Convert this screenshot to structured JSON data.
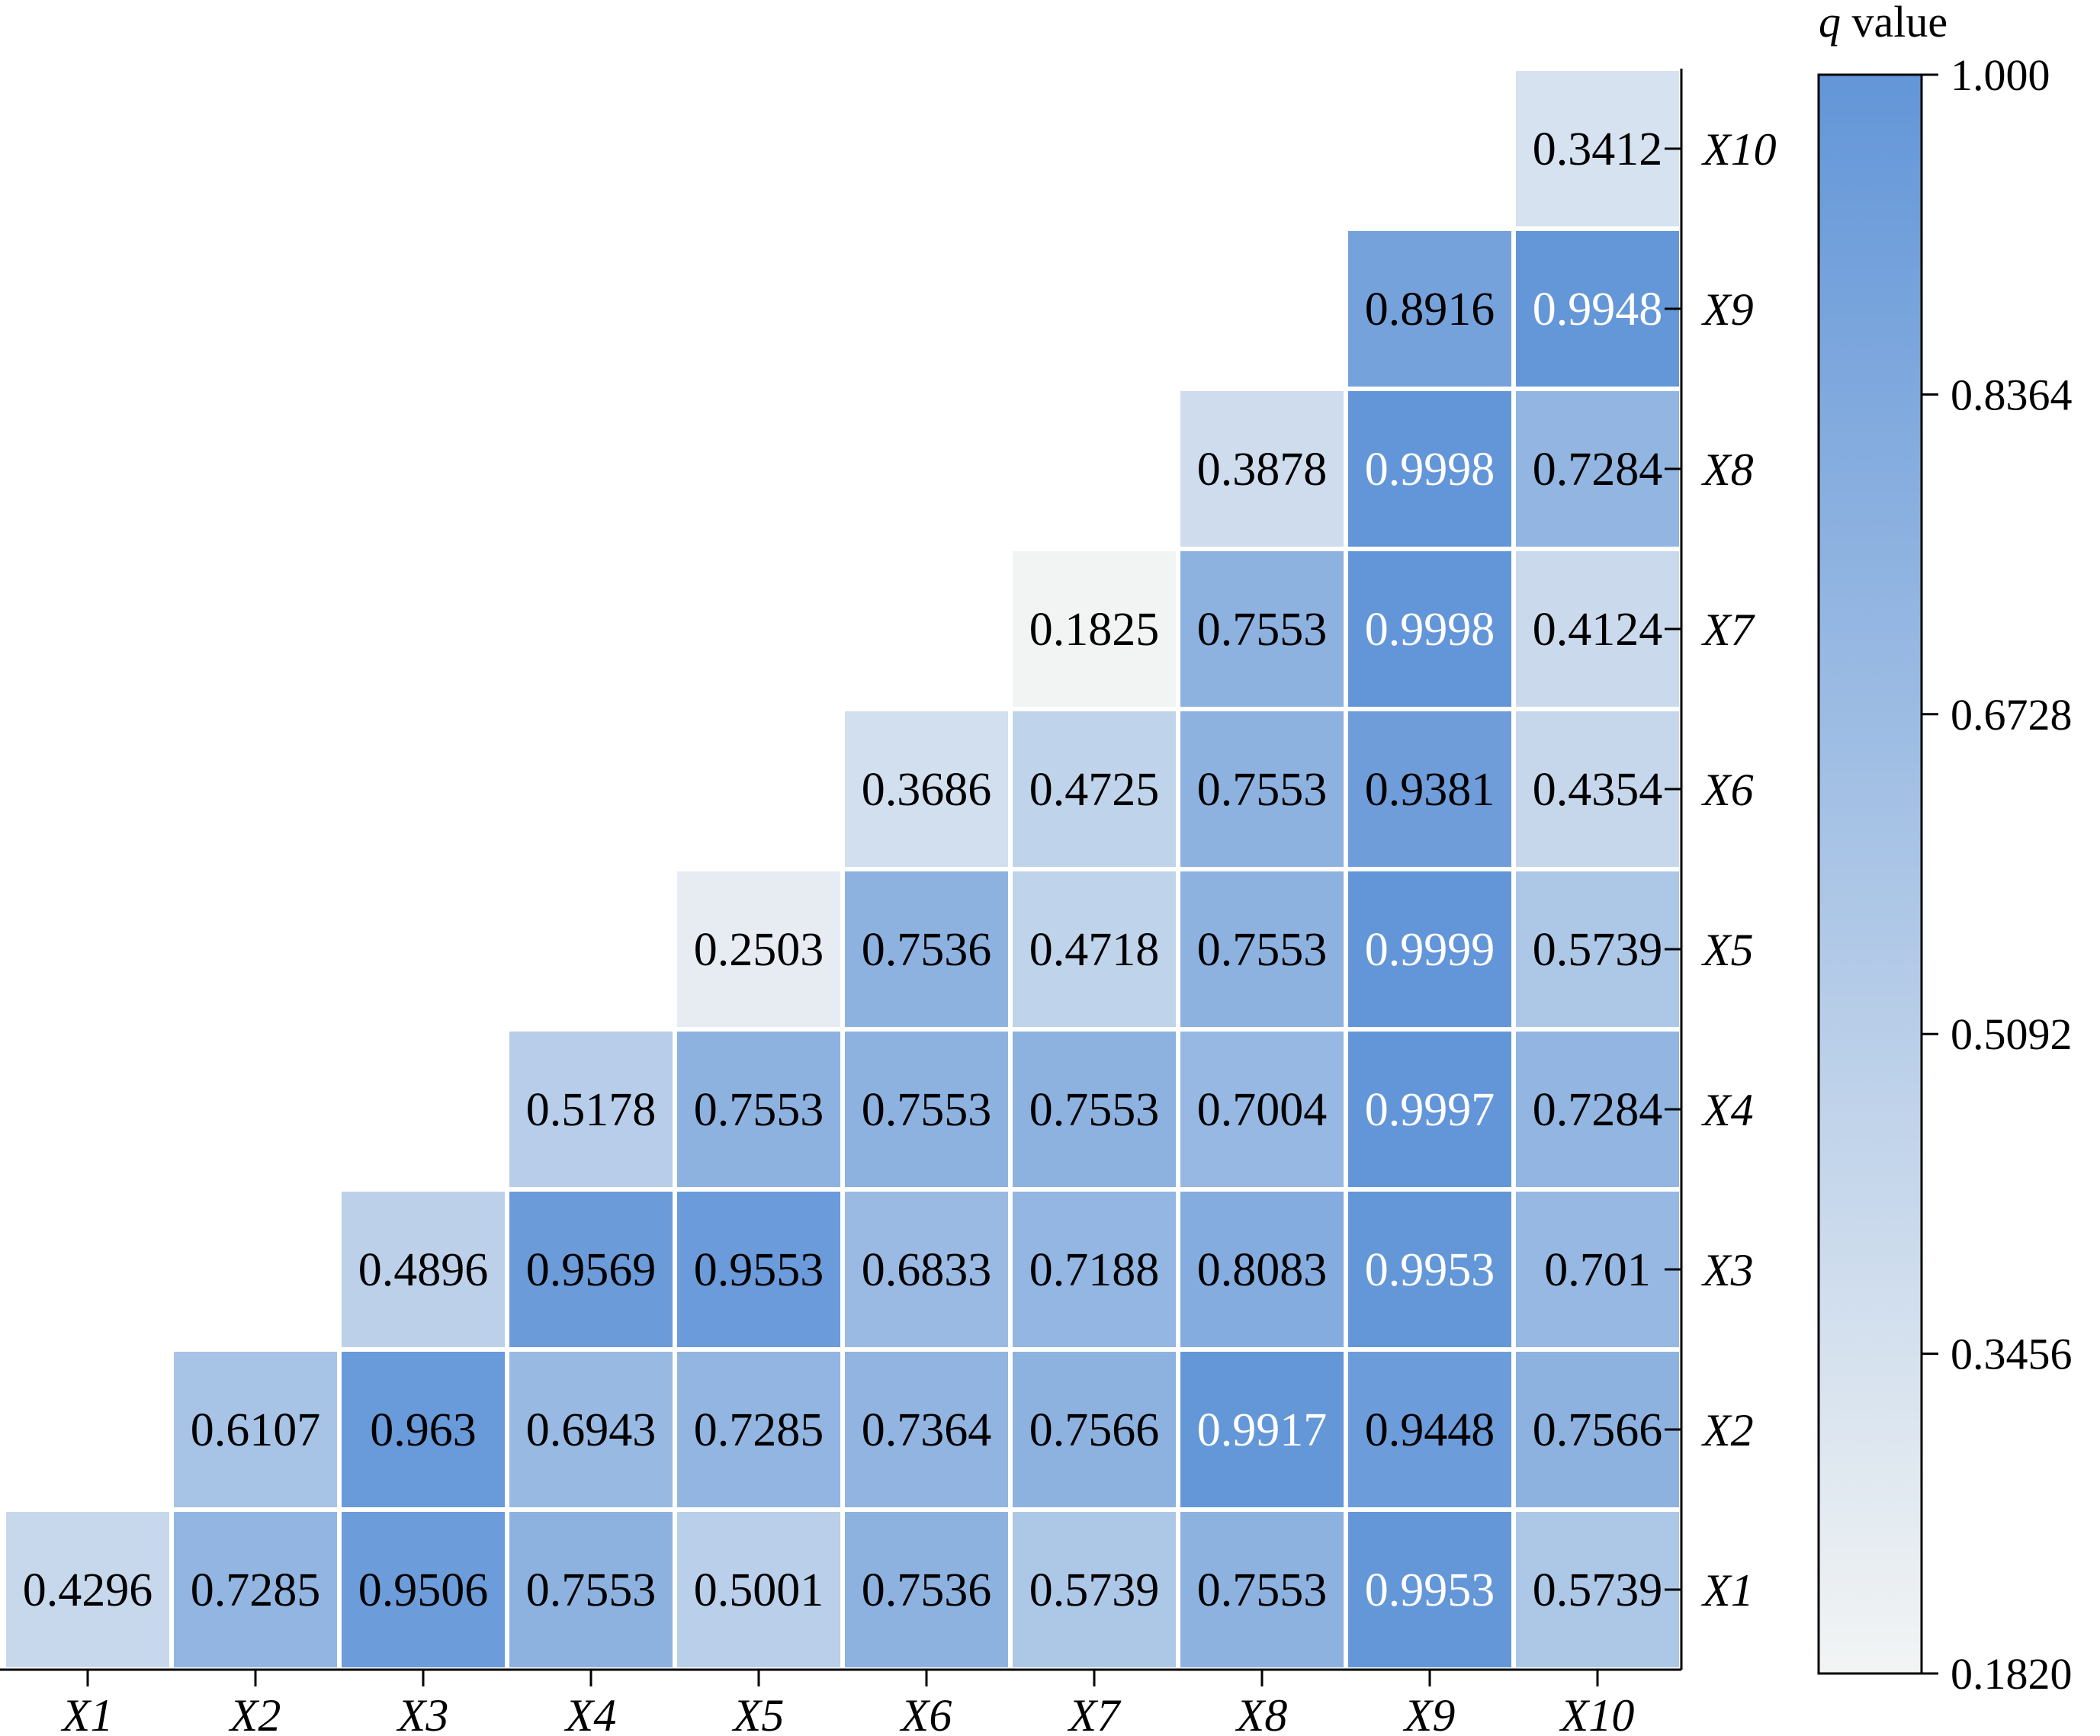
{
  "chart_data": {
    "type": "heatmap",
    "x_labels": [
      "X1",
      "X2",
      "X3",
      "X4",
      "X5",
      "X6",
      "X7",
      "X8",
      "X9",
      "X10"
    ],
    "y_labels": [
      "X1",
      "X2",
      "X3",
      "X4",
      "X5",
      "X6",
      "X7",
      "X8",
      "X9",
      "X10"
    ],
    "cell_text": [
      [
        "0.4296",
        "0.7285",
        "0.9506",
        "0.7553",
        "0.5001",
        "0.7536",
        "0.5739",
        "0.7553",
        "0.9953",
        "0.5739"
      ],
      [
        null,
        "0.6107",
        "0.963",
        "0.6943",
        "0.7285",
        "0.7364",
        "0.7566",
        "0.9917",
        "0.9448",
        "0.7566"
      ],
      [
        null,
        null,
        "0.4896",
        "0.9569",
        "0.9553",
        "0.6833",
        "0.7188",
        "0.8083",
        "0.9953",
        "0.701"
      ],
      [
        null,
        null,
        null,
        "0.5178",
        "0.7553",
        "0.7553",
        "0.7553",
        "0.7004",
        "0.9997",
        "0.7284"
      ],
      [
        null,
        null,
        null,
        null,
        "0.2503",
        "0.7536",
        "0.4718",
        "0.7553",
        "0.9999",
        "0.5739"
      ],
      [
        null,
        null,
        null,
        null,
        null,
        "0.3686",
        "0.4725",
        "0.7553",
        "0.9381",
        "0.4354"
      ],
      [
        null,
        null,
        null,
        null,
        null,
        null,
        "0.1825",
        "0.7553",
        "0.9998",
        "0.4124"
      ],
      [
        null,
        null,
        null,
        null,
        null,
        null,
        null,
        "0.3878",
        "0.9998",
        "0.7284"
      ],
      [
        null,
        null,
        null,
        null,
        null,
        null,
        null,
        null,
        "0.8916",
        "0.9948"
      ],
      [
        null,
        null,
        null,
        null,
        null,
        null,
        null,
        null,
        null,
        "0.3412"
      ]
    ],
    "colorbar": {
      "title_var": "q",
      "title_rest": " value",
      "min": 0.182,
      "max": 1.0,
      "ticks": [
        1.0,
        0.8364,
        0.6728,
        0.5092,
        0.3456,
        0.182
      ],
      "tick_labels": [
        "1.000",
        "0.8364",
        "0.6728",
        "0.5092",
        "0.3456",
        "0.1820"
      ],
      "color_low": "#f2f4f4",
      "color_high": "#6396d8"
    },
    "text_color_dark": "#000000",
    "text_color_light": "#ffffff",
    "light_text_threshold": 0.99
  }
}
